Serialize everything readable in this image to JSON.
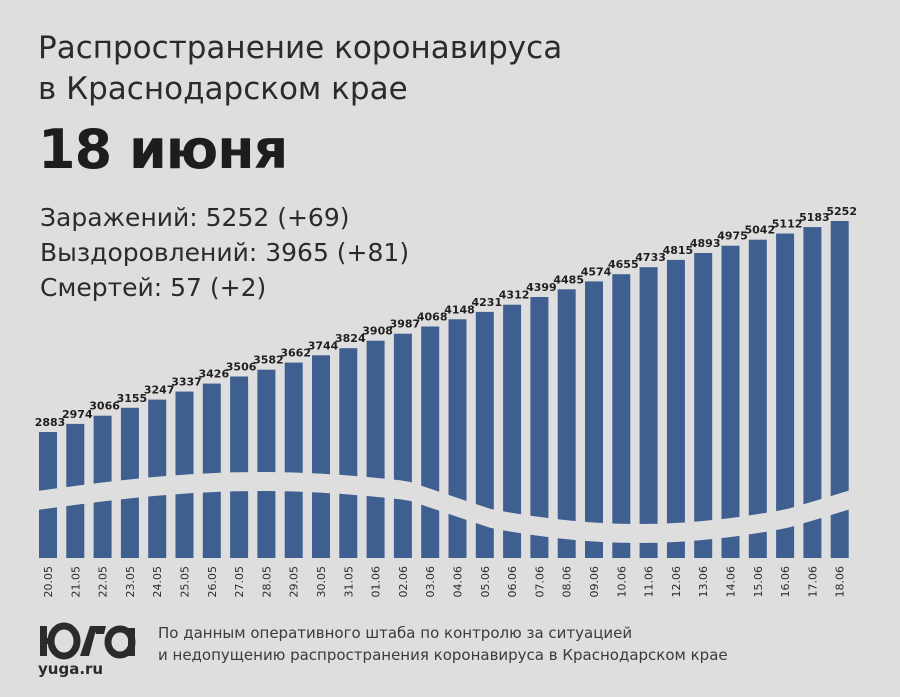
{
  "header": {
    "title_line1": "Распространение коронавируса",
    "title_line2": "в Краснодарском крае",
    "date": "18 июня"
  },
  "stats": {
    "infections": "Заражений: 5252 (+69)",
    "recoveries": "Выздоровлений: 3965 (+81)",
    "deaths": "Смертей: 57 (+2)"
  },
  "footer": {
    "logo_site": "yuga.ru",
    "source_line1": "По данным оперативного штаба по контролю за ситуацией",
    "source_line2": "и недопущению распространения коронавируса в Краснодарском крае"
  },
  "colors": {
    "background": "#dedede",
    "bar": "#3f5f91",
    "text": "#231f20"
  },
  "chart_data": {
    "type": "bar",
    "categories": [
      "20.05",
      "21.05",
      "22.05",
      "23.05",
      "24.05",
      "25.05",
      "26.05",
      "27.05",
      "28.05",
      "29.05",
      "30.05",
      "31.05",
      "01.06",
      "02.06",
      "03.06",
      "04.06",
      "05.06",
      "06.06",
      "07.06",
      "08.06",
      "09.06",
      "10.06",
      "11.06",
      "12.06",
      "13.06",
      "14.06",
      "15.06",
      "16.06",
      "17.06",
      "18.06"
    ],
    "series": [
      {
        "values": [
          2883,
          2974,
          3066,
          3155,
          3247,
          3337,
          3426,
          3506,
          3582,
          3662,
          3744,
          3824,
          3908,
          3987,
          4068,
          4148,
          4231,
          4312,
          4399,
          4485,
          4574,
          4655,
          4733,
          4815,
          4893,
          4975,
          5042,
          5112,
          5183,
          5252
        ]
      }
    ],
    "title": "",
    "xlabel": "",
    "ylabel": "",
    "grid": false,
    "legend": "none",
    "note": "y-axis is broken (wavy cut), values are shown as data labels above bars"
  }
}
